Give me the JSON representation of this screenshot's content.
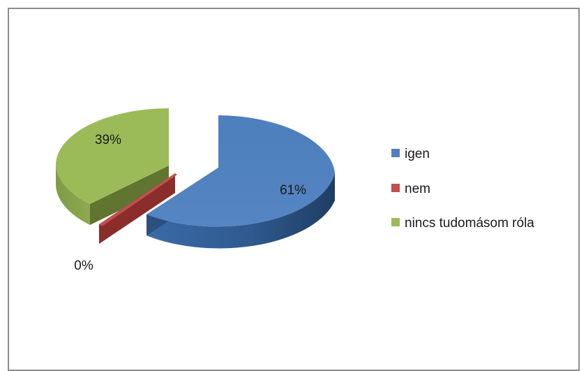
{
  "chart_data": {
    "type": "pie",
    "title": "",
    "series": [
      {
        "categories": [
          "igen",
          "nem",
          "nincs tudomásom róla"
        ],
        "values": [
          61,
          0,
          39
        ],
        "labels": [
          "61%",
          "0%",
          "39%"
        ]
      }
    ],
    "colors": [
      "#4f81bd",
      "#c0504d",
      "#9bbb59"
    ],
    "legend": {
      "position": "right",
      "entries": [
        "igen",
        "nem",
        "nincs tudomásom róla"
      ]
    },
    "exploded": true,
    "three_d": true
  }
}
